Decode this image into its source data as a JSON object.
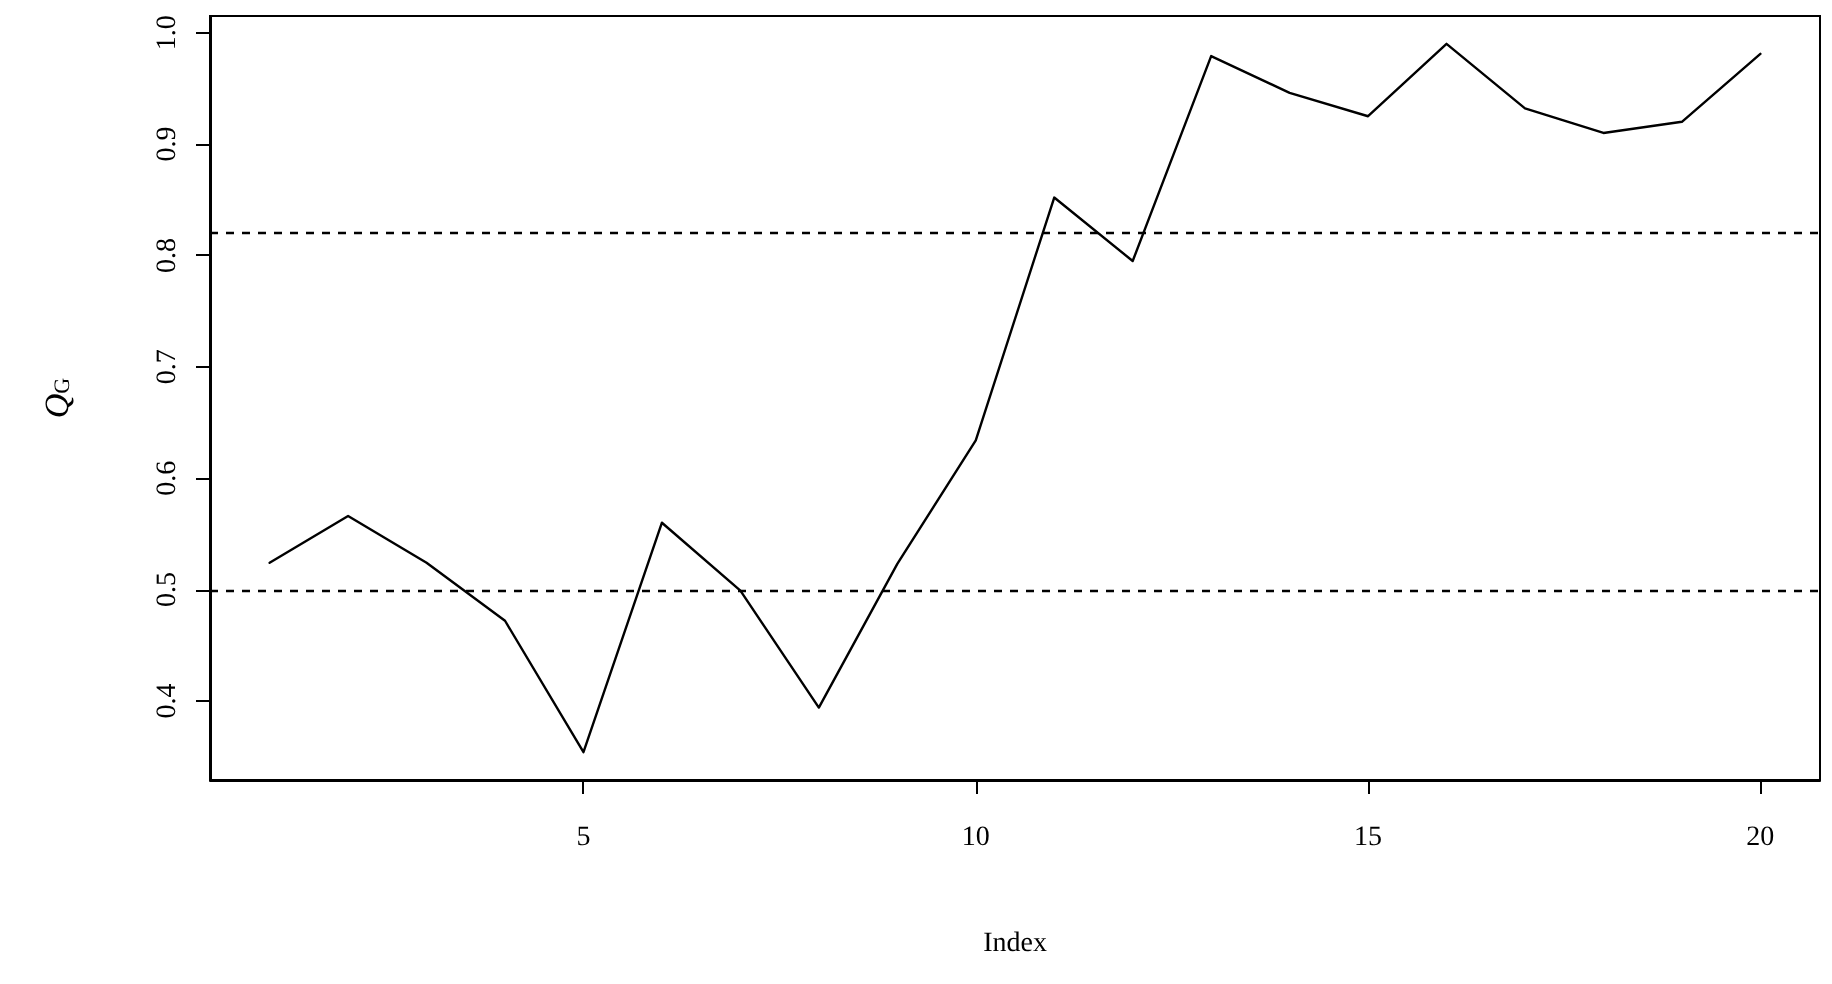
{
  "chart_data": {
    "type": "line",
    "xlabel": "Index",
    "ylabel": "Q$_{G}$",
    "x": [
      1,
      2,
      3,
      4,
      5,
      6,
      7,
      8,
      9,
      10,
      11,
      12,
      13,
      14,
      15,
      16,
      17,
      18,
      19,
      20
    ],
    "series": [
      {
        "color": "#000000",
        "values": [
          0.524,
          0.566,
          0.524,
          0.472,
          0.354,
          0.56,
          0.499,
          0.394,
          0.523,
          0.634,
          0.852,
          0.795,
          0.979,
          0.946,
          0.925,
          0.99,
          0.932,
          0.91,
          0.92,
          0.981
        ]
      }
    ],
    "xlim": [
      0.24,
      20.76
    ],
    "xticks": [
      5,
      10,
      15,
      20
    ],
    "ylim": [
      0.329,
      1.015
    ],
    "yticks": [
      0.4,
      0.5,
      0.6,
      0.7,
      0.8,
      0.9,
      {
        "value": 1.0,
        "label": "1.0"
      }
    ],
    "ref_lines": [
      {
        "axis": "y",
        "value": 0.82,
        "line_style": "dashed",
        "color": "#000000"
      },
      {
        "axis": "y",
        "value": 0.5,
        "line_style": "dashed",
        "color": "#000000"
      }
    ],
    "grid": false,
    "marker": "none",
    "line_style": "solid"
  }
}
